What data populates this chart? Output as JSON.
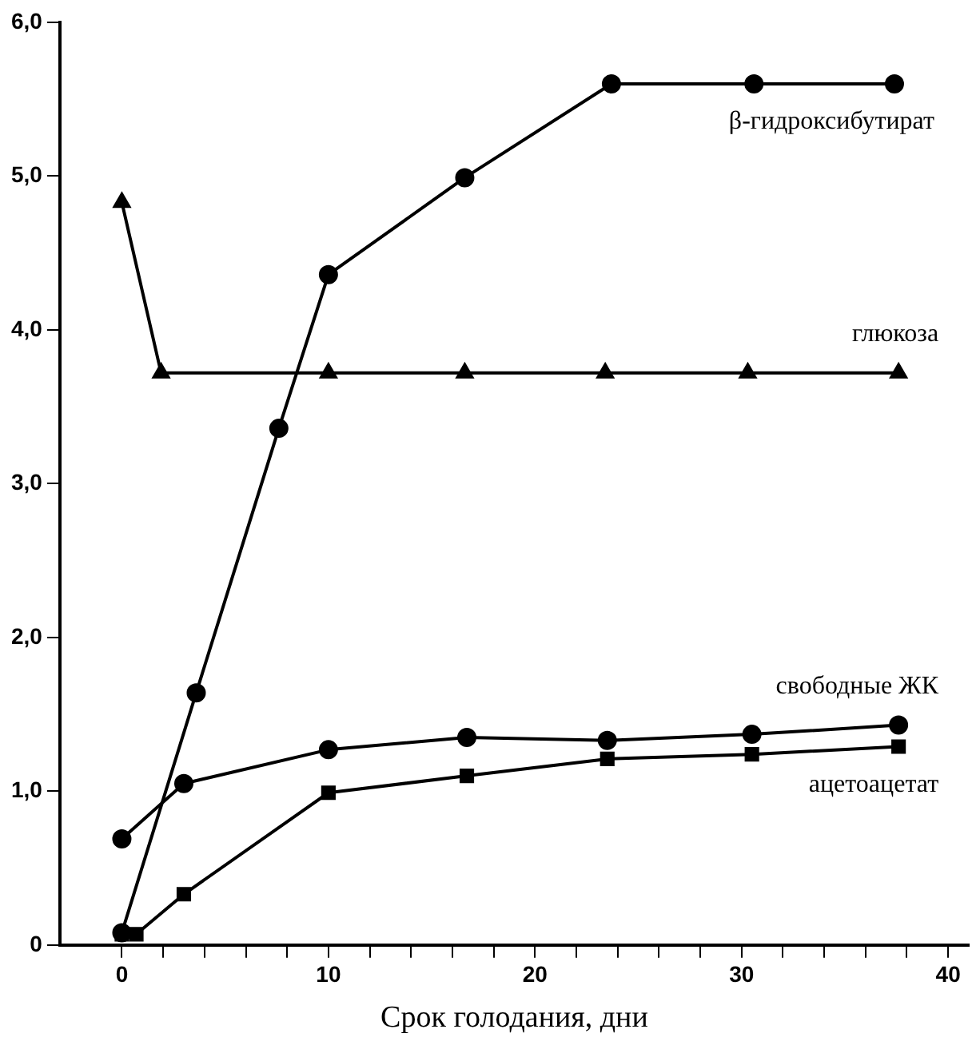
{
  "chart_data": {
    "type": "line",
    "xlabel": "Срок голодания, дни",
    "xlim": [
      -3,
      41
    ],
    "xticks": [
      0,
      {
        "value": 2,
        "label": null
      },
      {
        "value": 4,
        "label": null
      },
      {
        "value": 6,
        "label": null
      },
      {
        "value": 8,
        "label": null
      },
      10,
      {
        "value": 12,
        "label": null
      },
      {
        "value": 14,
        "label": null
      },
      {
        "value": 16,
        "label": null
      },
      {
        "value": 18,
        "label": null
      },
      20,
      {
        "value": 22,
        "label": null
      },
      {
        "value": 24,
        "label": null
      },
      {
        "value": 26,
        "label": null
      },
      {
        "value": 28,
        "label": null
      },
      30,
      {
        "value": 32,
        "label": null
      },
      {
        "value": 34,
        "label": null
      },
      {
        "value": 36,
        "label": null
      },
      {
        "value": 38,
        "label": null
      },
      40
    ],
    "ylim": [
      0,
      6
    ],
    "yticks": [
      0,
      {
        "value": 1,
        "label": "1,0"
      },
      {
        "value": 2,
        "label": "2,0"
      },
      {
        "value": 3,
        "label": "3,0"
      },
      {
        "value": 4,
        "label": "4,0"
      },
      {
        "value": 5,
        "label": "5,0"
      },
      {
        "value": 6,
        "label": "6,0"
      }
    ],
    "grid": false,
    "legend": false,
    "line_style": "solid",
    "series": [
      {
        "name": "β-гидроксибутират",
        "color": "#000000",
        "marker": "circle",
        "x": [
          0,
          3.6,
          7.6,
          10,
          16.6,
          23.7,
          30.6,
          37.4
        ],
        "values": [
          0.08,
          1.64,
          3.36,
          4.36,
          4.99,
          5.6,
          5.6,
          5.6
        ]
      },
      {
        "name": "глюкоза",
        "color": "#000000",
        "marker": "triangle",
        "x": [
          0,
          1.9,
          10,
          16.6,
          23.4,
          30.3,
          37.6
        ],
        "values": [
          4.83,
          3.72,
          3.72,
          3.72,
          3.72,
          3.72,
          3.72
        ]
      },
      {
        "name": "свободные ЖК",
        "color": "#000000",
        "marker": "circle",
        "x": [
          0,
          3,
          10,
          16.7,
          23.5,
          30.5,
          37.6
        ],
        "values": [
          0.69,
          1.05,
          1.27,
          1.35,
          1.33,
          1.37,
          1.43
        ]
      },
      {
        "name": "ацетоацетат",
        "color": "#000000",
        "marker": "square",
        "x": [
          0,
          0.7,
          3,
          10,
          16.7,
          23.5,
          30.5,
          37.6
        ],
        "values": [
          0.07,
          0.07,
          0.33,
          0.99,
          1.1,
          1.21,
          1.24,
          1.29
        ]
      }
    ]
  }
}
